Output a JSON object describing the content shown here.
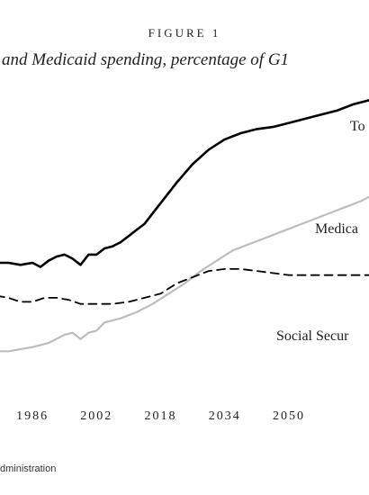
{
  "figure_label": "FIGURE 1",
  "title": "and Medicaid spending, percentage of G1",
  "source": "dministration",
  "chart_data": {
    "type": "line",
    "title": "and Medicaid spending, percentage of G1",
    "xlabel": "",
    "ylabel": "",
    "x_ticks": [
      1986,
      2002,
      2018,
      2034,
      2050
    ],
    "xlim": [
      1977,
      2070
    ],
    "ylim": [
      0,
      14
    ],
    "grid": false,
    "legend": "inline labels",
    "series": [
      {
        "name": "To",
        "color": "#000000",
        "x": [
          1977,
          1980,
          1983,
          1986,
          1988,
          1990,
          1992,
          1994,
          1996,
          1998,
          2000,
          2002,
          2004,
          2006,
          2008,
          2010,
          2012,
          2014,
          2016,
          2018,
          2022,
          2026,
          2030,
          2034,
          2038,
          2042,
          2046,
          2050,
          2054,
          2058,
          2062,
          2066,
          2070
        ],
        "y": [
          6.3,
          6.3,
          6.2,
          6.3,
          6.1,
          6.4,
          6.6,
          6.7,
          6.5,
          6.2,
          6.7,
          6.7,
          7.0,
          7.1,
          7.3,
          7.6,
          7.9,
          8.2,
          8.7,
          9.2,
          10.2,
          11.1,
          11.8,
          12.3,
          12.6,
          12.8,
          12.9,
          13.1,
          13.3,
          13.5,
          13.7,
          14.0,
          14.2
        ]
      },
      {
        "name": "Medica",
        "color": "#bdbdbd",
        "x": [
          1977,
          1980,
          1983,
          1986,
          1990,
          1994,
          1996,
          1998,
          2000,
          2002,
          2004,
          2006,
          2008,
          2012,
          2016,
          2020,
          2024,
          2028,
          2032,
          2036,
          2040,
          2044,
          2048,
          2052,
          2056,
          2060,
          2064,
          2068,
          2070
        ],
        "y": [
          2.0,
          2.0,
          2.1,
          2.2,
          2.4,
          2.8,
          2.9,
          2.6,
          2.9,
          3.0,
          3.4,
          3.5,
          3.6,
          3.9,
          4.3,
          4.8,
          5.3,
          5.9,
          6.4,
          6.9,
          7.2,
          7.5,
          7.8,
          8.1,
          8.4,
          8.7,
          9.0,
          9.3,
          9.5
        ]
      },
      {
        "name": "Social Secur",
        "color": "#000000",
        "dashed": true,
        "x": [
          1977,
          1980,
          1983,
          1986,
          1989,
          1992,
          1995,
          1998,
          2002,
          2006,
          2010,
          2014,
          2018,
          2022,
          2026,
          2030,
          2034,
          2038,
          2042,
          2046,
          2050,
          2054,
          2058,
          2062,
          2066,
          2070
        ],
        "y": [
          4.7,
          4.6,
          4.4,
          4.4,
          4.6,
          4.6,
          4.5,
          4.3,
          4.3,
          4.3,
          4.4,
          4.6,
          4.8,
          5.3,
          5.6,
          5.9,
          6.0,
          6.0,
          5.9,
          5.8,
          5.7,
          5.7,
          5.7,
          5.7,
          5.7,
          5.7
        ]
      }
    ]
  }
}
